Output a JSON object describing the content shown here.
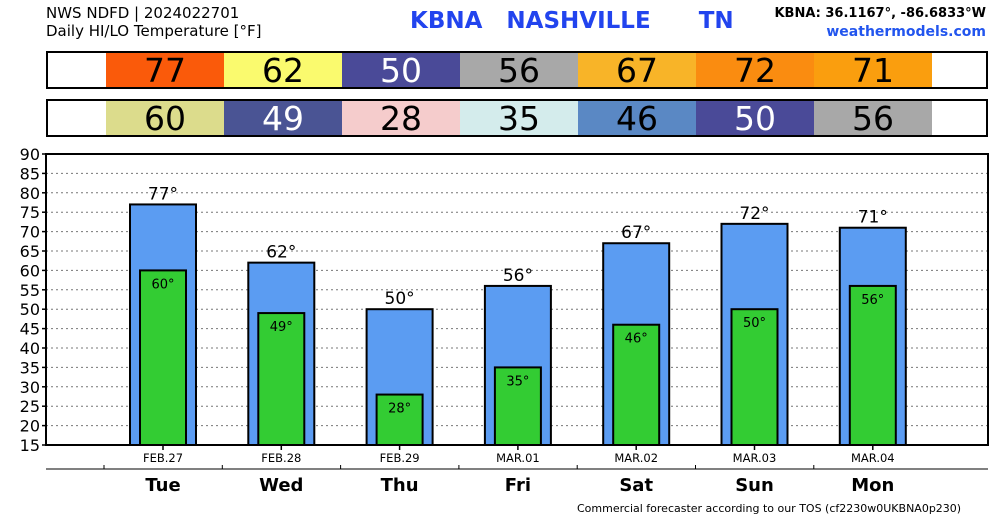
{
  "header": {
    "line1": "NWS NDFD | 2024022701",
    "line2": "Daily HI/LO Temperature [°F]",
    "station": "KBNA   NASHVILLE      TN",
    "coords": "KBNA: 36.1167°, -86.6833°W",
    "site": "weathermodels.com"
  },
  "footer": "Commercial forecaster according to our TOS (cf2230w0UKBNA0p230)",
  "hi_row": [
    {
      "value": "77",
      "color": "#fa5a0a"
    },
    {
      "value": "62",
      "color": "#fafa6e"
    },
    {
      "value": "50",
      "color": "#4a4a98"
    },
    {
      "value": "56",
      "color": "#a8a8a8"
    },
    {
      "value": "67",
      "color": "#f8b428"
    },
    {
      "value": "72",
      "color": "#fa8c10"
    },
    {
      "value": "71",
      "color": "#fa9e0e"
    }
  ],
  "lo_row": [
    {
      "value": "60",
      "color": "#dcdc8c"
    },
    {
      "value": "49",
      "color": "#4a5494"
    },
    {
      "value": "28",
      "color": "#f5cccc"
    },
    {
      "value": "35",
      "color": "#d4ecec"
    },
    {
      "value": "46",
      "color": "#5a88c4"
    },
    {
      "value": "50",
      "color": "#4a4a98"
    },
    {
      "value": "56",
      "color": "#a8a8a8"
    }
  ],
  "colors": {
    "hi_bar": "#5b9cf2",
    "lo_bar": "#33cc33",
    "hi_text_dark": "#000000",
    "hi_text_light": "#ffffff"
  },
  "chart_data": {
    "type": "bar",
    "categories": [
      "Tue",
      "Wed",
      "Thu",
      "Fri",
      "Sat",
      "Sun",
      "Mon"
    ],
    "dates": [
      "FEB.27",
      "FEB.28",
      "FEB.29",
      "MAR.01",
      "MAR.02",
      "MAR.03",
      "MAR.04"
    ],
    "series": [
      {
        "name": "HI",
        "values": [
          77,
          62,
          50,
          56,
          67,
          72,
          71
        ]
      },
      {
        "name": "LO",
        "values": [
          60,
          49,
          28,
          35,
          46,
          50,
          56
        ]
      }
    ],
    "ylim": [
      15,
      90
    ],
    "yticks": [
      15,
      20,
      25,
      30,
      35,
      40,
      45,
      50,
      55,
      60,
      65,
      70,
      75,
      80,
      85,
      90
    ],
    "hi_labels": [
      "77°",
      "62°",
      "50°",
      "56°",
      "67°",
      "72°",
      "71°"
    ],
    "lo_labels": [
      "60°",
      "49°",
      "28°",
      "35°",
      "46°",
      "50°",
      "56°"
    ],
    "grid": "horizontal dotted"
  }
}
